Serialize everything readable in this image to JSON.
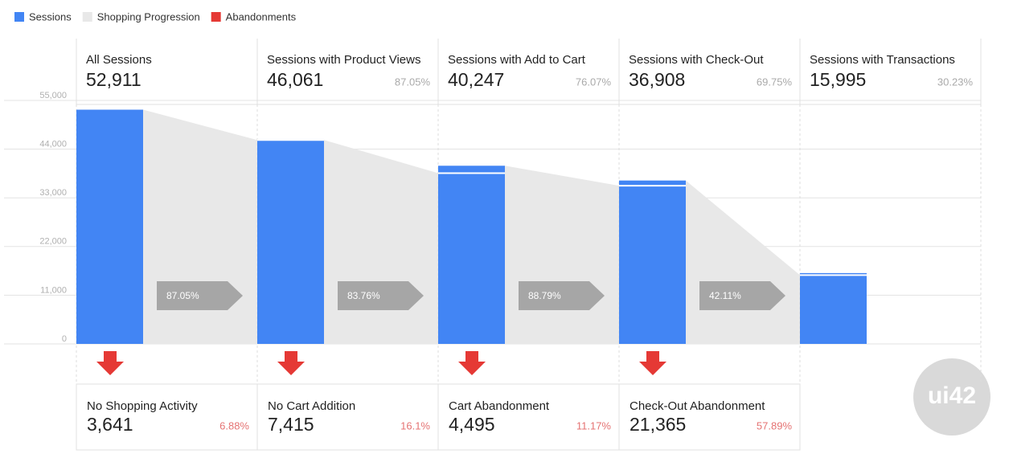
{
  "chart_data": {
    "type": "funnel",
    "stages": [
      "All Sessions",
      "Sessions with Product Views",
      "Sessions with Add to Cart",
      "Sessions with Check-Out",
      "Sessions with Transactions"
    ],
    "series": [
      {
        "name": "Sessions",
        "color": "#4285f4",
        "values": [
          52911,
          46061,
          40247,
          36908,
          15995
        ],
        "value_labels": [
          "52,911",
          "46,061",
          "40,247",
          "36,908",
          "15,995"
        ],
        "shares": [
          null,
          87.05,
          76.07,
          69.75,
          30.23
        ],
        "share_labels": [
          null,
          "87.05%",
          "76.07%",
          "69.75%",
          "30.23%"
        ]
      },
      {
        "name": "Shopping Progression",
        "color": "#e8e8e8",
        "values": [
          null,
          46059,
          38581,
          35735,
          15542
        ]
      },
      {
        "name": "Abandonments",
        "color": "#e53935",
        "categories": [
          "No Shopping Activity",
          "No Cart Addition",
          "Cart Abandonment",
          "Check-Out Abandonment"
        ],
        "values": [
          3641,
          7415,
          4495,
          21365
        ],
        "value_labels": [
          "3,641",
          "7,415",
          "4,495",
          "21,365"
        ],
        "shares": [
          6.88,
          16.1,
          11.17,
          57.89
        ],
        "share_labels": [
          "6.88%",
          "16.1%",
          "11.17%",
          "57.89%"
        ]
      }
    ],
    "conversion_rates": [
      87.05,
      83.76,
      88.79,
      42.11
    ],
    "conversion_labels": [
      "87.05%",
      "83.76%",
      "88.79%",
      "42.11%"
    ],
    "ylim": [
      0,
      55000
    ],
    "yticks": [
      0,
      {
        "value": 11000,
        "label": "11,000"
      },
      {
        "value": 22000,
        "label": "22,000"
      },
      {
        "value": 33000,
        "label": "33,000"
      },
      {
        "value": 44000,
        "label": "44,000"
      },
      {
        "value": 55000,
        "label": "55,000"
      }
    ],
    "grid": true,
    "logo": "ui42"
  }
}
